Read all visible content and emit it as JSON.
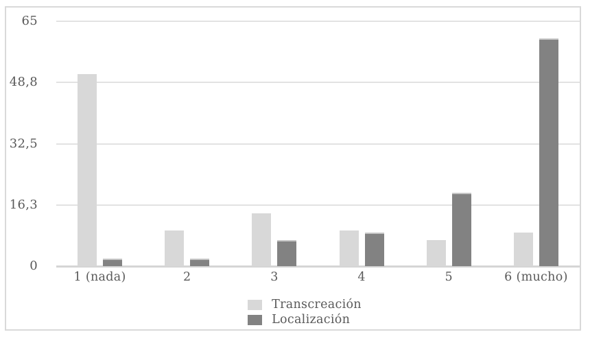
{
  "chart_data": {
    "type": "bar",
    "title": "",
    "xlabel": "",
    "ylabel": "",
    "categories": [
      "1 (nada)",
      "2",
      "3",
      "4",
      "5",
      "6 (mucho)"
    ],
    "series": [
      {
        "name": "Transcreación",
        "color": "#d8d8d8",
        "values": [
          51,
          9.5,
          14,
          9.5,
          7,
          9
        ]
      },
      {
        "name": "Localización",
        "color": "#828282",
        "values": [
          2,
          2,
          7,
          9,
          19.5,
          60.5
        ]
      }
    ],
    "y_ticks": [
      {
        "value": 0,
        "label": "0"
      },
      {
        "value": 16.25,
        "label": "16,3"
      },
      {
        "value": 32.5,
        "label": "32,5"
      },
      {
        "value": 48.75,
        "label": "48,8"
      },
      {
        "value": 65,
        "label": "65"
      }
    ],
    "ylim": [
      0,
      65
    ],
    "grid": true,
    "legend_position": "bottom-center"
  },
  "colors": {
    "series_transcreacion": "#d8d8d8",
    "series_localizacion": "#828282",
    "gridline": "#e2e2e2",
    "axis_line": "#d5d5d5",
    "frame_border": "#d9d9d9",
    "text": "#595959",
    "background": "#ffffff"
  }
}
